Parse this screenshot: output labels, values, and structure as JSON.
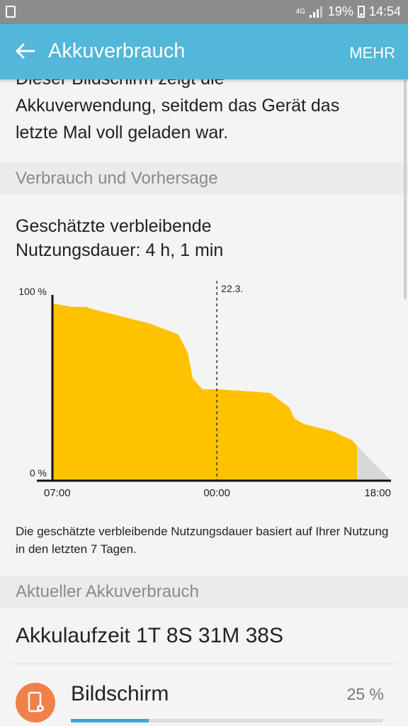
{
  "status_bar": {
    "network": "4G",
    "battery_percent": "19%",
    "time": "14:54"
  },
  "app_bar": {
    "title": "Akkuverbrauch",
    "more_label": "MEHR"
  },
  "intro": {
    "lines": [
      "Dieser Bildschirm zeigt die",
      "Akkuverwendung, seitdem das Gerät das",
      "letzte Mal voll geladen war."
    ]
  },
  "section_forecast": {
    "header": "Verbrauch und Vorhersage"
  },
  "estimate": {
    "line1": "Geschätzte verbleibende",
    "line2": "Nutzungsdauer: 4 h, 1 min"
  },
  "chart_data": {
    "type": "area",
    "y_tick_labels": [
      "100 %",
      "0 %"
    ],
    "x_tick_labels": [
      "07:00",
      "00:00",
      "18:00"
    ],
    "marker_label": "22.3.",
    "ylim": [
      0,
      100
    ],
    "x_range_hours": [
      0,
      35
    ],
    "marker_x_hours": 17,
    "series": [
      {
        "values_x_hours": [
          0,
          2,
          3.5,
          4,
          7,
          10,
          11,
          13,
          14,
          14.5,
          15.5,
          16.5,
          17,
          20,
          22.5,
          23.5,
          24.5,
          25,
          26,
          29,
          31,
          31.5
        ],
        "values_y": [
          97,
          95,
          95,
          94,
          90,
          86,
          84,
          80,
          70,
          56,
          50,
          50,
          50,
          49,
          48,
          44,
          40,
          34,
          31,
          27,
          22,
          19
        ]
      },
      {
        "kind": "prediction",
        "values_x_hours": [
          31.5,
          35
        ],
        "values_y": [
          19,
          0
        ]
      }
    ],
    "colors": {
      "area": "#ffc200",
      "prediction": "#d8d8d8",
      "axis": "#111111"
    }
  },
  "note": {
    "text": "Die geschätzte verbleibende Nutzungsdauer basiert auf Ihrer Nutzung in den letzten 7 Tagen."
  },
  "section_current": {
    "header": "Aktueller Akkuverbrauch"
  },
  "runtime": {
    "text": "Akkulaufzeit 1T 8S 31M 38S"
  },
  "apps": [
    {
      "name": "Bildschirm",
      "percent": "25 %",
      "fraction": 0.25,
      "icon": "screen-settings-icon"
    }
  ]
}
